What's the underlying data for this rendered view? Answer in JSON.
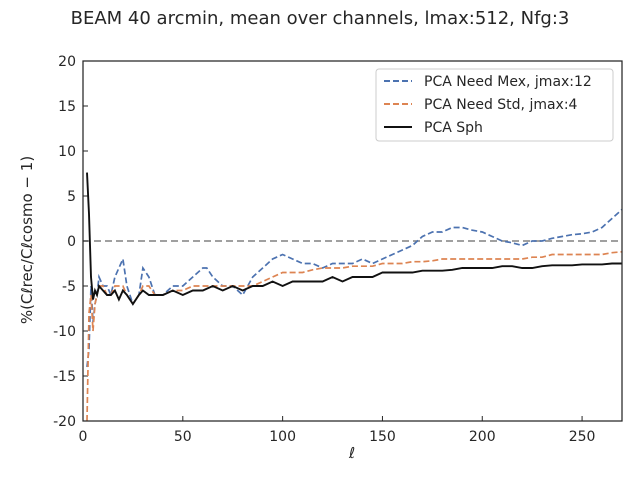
{
  "chart_data": {
    "type": "line",
    "title": "BEAM 40 arcmin, mean over channels, lmax:512, Nfg:3",
    "xlabel": "ℓ",
    "ylabel": "%(Cℓrec/Cℓcosmo − 1)",
    "xlim": [
      0,
      270
    ],
    "ylim": [
      -20,
      20
    ],
    "xticks": [
      0,
      50,
      100,
      150,
      200,
      250
    ],
    "yticks": [
      -20,
      -15,
      -10,
      -5,
      0,
      5,
      10,
      15,
      20
    ],
    "grid": false,
    "legend_position": "top-right",
    "reference_line": {
      "y": 0,
      "color": "#808080",
      "style": "dashed"
    },
    "series": [
      {
        "name": "PCA Need Mex, jmax:12",
        "color": "#4c72b0",
        "style": "dashed",
        "x": [
          2,
          3,
          4,
          5,
          6,
          7,
          8,
          10,
          12,
          14,
          16,
          18,
          20,
          22,
          25,
          28,
          30,
          33,
          36,
          40,
          45,
          50,
          55,
          60,
          62,
          65,
          70,
          75,
          80,
          85,
          90,
          95,
          100,
          105,
          110,
          115,
          120,
          125,
          130,
          135,
          140,
          145,
          150,
          155,
          160,
          165,
          170,
          175,
          180,
          185,
          190,
          195,
          200,
          205,
          210,
          215,
          220,
          225,
          230,
          235,
          240,
          245,
          250,
          255,
          260,
          265,
          270
        ],
        "y": [
          -14,
          -12,
          -5,
          -9,
          -7,
          -6,
          -4,
          -5,
          -5,
          -6,
          -4,
          -3,
          -2,
          -5,
          -7,
          -6,
          -3,
          -4,
          -6,
          -6,
          -5,
          -5,
          -4,
          -3,
          -3,
          -4,
          -5,
          -5,
          -6,
          -4,
          -3,
          -2,
          -1.5,
          -2,
          -2.5,
          -2.5,
          -3,
          -2.5,
          -2.5,
          -2.5,
          -2,
          -2.5,
          -2,
          -1.5,
          -1,
          -0.5,
          0.5,
          1,
          1,
          1.5,
          1.5,
          1.2,
          1,
          0.5,
          0,
          -0.2,
          -0.5,
          0,
          0,
          0.3,
          0.5,
          0.7,
          0.8,
          1,
          1.5,
          2.5,
          3.5
        ]
      },
      {
        "name": "PCA Need Std, jmax:4",
        "color": "#dd8452",
        "style": "dashed",
        "x": [
          2,
          3,
          4,
          5,
          6,
          7,
          8,
          10,
          12,
          14,
          16,
          18,
          20,
          22,
          25,
          28,
          30,
          33,
          36,
          40,
          45,
          50,
          55,
          60,
          65,
          70,
          75,
          80,
          85,
          90,
          95,
          100,
          105,
          110,
          115,
          120,
          125,
          130,
          135,
          140,
          145,
          150,
          155,
          160,
          165,
          170,
          175,
          180,
          185,
          190,
          195,
          200,
          205,
          210,
          215,
          220,
          225,
          230,
          235,
          240,
          245,
          250,
          255,
          260,
          265,
          270
        ],
        "y": [
          -20,
          -8,
          -6,
          -10,
          -7,
          -6,
          -5,
          -5,
          -6,
          -6,
          -5,
          -5,
          -5,
          -6,
          -7,
          -6,
          -5,
          -5,
          -6,
          -6,
          -5.5,
          -5.5,
          -5,
          -5,
          -5,
          -5,
          -5,
          -5,
          -5,
          -4.5,
          -4,
          -3.5,
          -3.5,
          -3.5,
          -3.2,
          -3,
          -3,
          -3,
          -2.8,
          -2.8,
          -2.8,
          -2.5,
          -2.5,
          -2.5,
          -2.3,
          -2.3,
          -2.2,
          -2,
          -2,
          -2,
          -2,
          -2,
          -2,
          -2,
          -2,
          -2,
          -1.8,
          -1.8,
          -1.5,
          -1.5,
          -1.5,
          -1.5,
          -1.5,
          -1.5,
          -1.3,
          -1.2
        ]
      },
      {
        "name": "PCA Sph",
        "color": "#111111",
        "style": "solid",
        "x": [
          2,
          3,
          4,
          5,
          6,
          7,
          8,
          10,
          12,
          14,
          16,
          18,
          20,
          22,
          25,
          28,
          30,
          33,
          36,
          40,
          45,
          50,
          55,
          60,
          65,
          70,
          75,
          80,
          85,
          90,
          95,
          100,
          105,
          110,
          115,
          120,
          125,
          130,
          135,
          140,
          145,
          150,
          155,
          160,
          165,
          170,
          175,
          180,
          185,
          190,
          195,
          200,
          205,
          210,
          215,
          220,
          225,
          230,
          235,
          240,
          245,
          250,
          255,
          260,
          265,
          270
        ],
        "y": [
          7.6,
          3,
          -4,
          -6.5,
          -5.5,
          -6,
          -5,
          -5.5,
          -6,
          -6,
          -5.5,
          -6.5,
          -5.5,
          -6,
          -7,
          -6,
          -5.5,
          -6,
          -6,
          -6,
          -5.5,
          -6,
          -5.5,
          -5.5,
          -5,
          -5.5,
          -5,
          -5.5,
          -5,
          -5,
          -4.5,
          -5,
          -4.5,
          -4.5,
          -4.5,
          -4.5,
          -4,
          -4.5,
          -4,
          -4,
          -4,
          -3.5,
          -3.5,
          -3.5,
          -3.5,
          -3.3,
          -3.3,
          -3.3,
          -3.2,
          -3,
          -3,
          -3,
          -3,
          -2.8,
          -2.8,
          -3,
          -3,
          -2.8,
          -2.7,
          -2.7,
          -2.7,
          -2.6,
          -2.6,
          -2.6,
          -2.5,
          -2.5
        ]
      }
    ]
  }
}
